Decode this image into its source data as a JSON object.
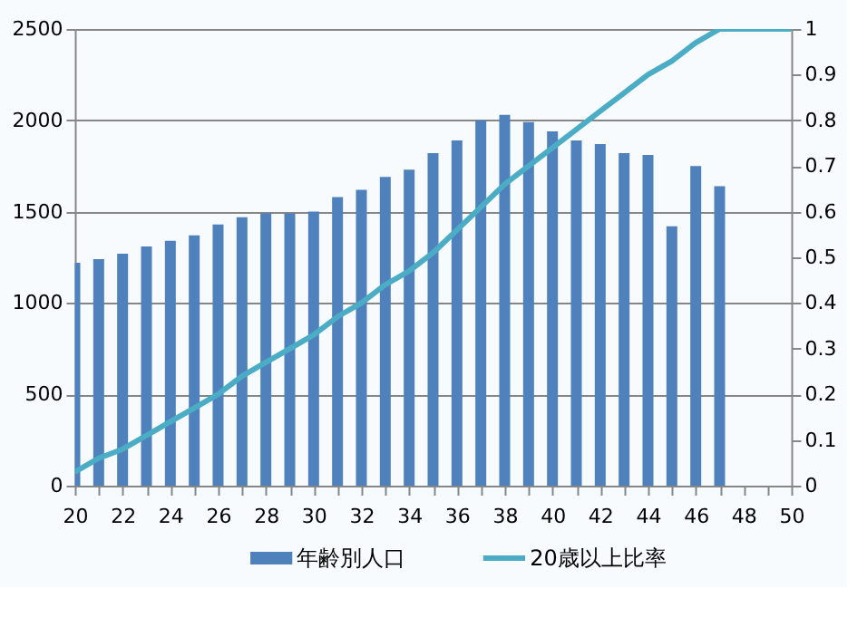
{
  "chart_data": {
    "type": "bar",
    "x": [
      20,
      21,
      22,
      23,
      24,
      25,
      26,
      27,
      28,
      29,
      30,
      31,
      32,
      33,
      34,
      35,
      36,
      37,
      38,
      39,
      40,
      41,
      42,
      43,
      44,
      45,
      46,
      47,
      48,
      49,
      50
    ],
    "series": [
      {
        "name": "年齢別人口",
        "color": "#4f81bd",
        "values": [
          1220,
          1240,
          1270,
          1310,
          1340,
          1370,
          1430,
          1470,
          1490,
          1490,
          1500,
          1580,
          1620,
          1690,
          1730,
          1820,
          1890,
          2000,
          2030,
          1990,
          1940,
          1890,
          1870,
          1820,
          1810,
          1420,
          1750,
          1640,
          null,
          null,
          null
        ]
      },
      {
        "name": "20歳以上比率",
        "type": "line",
        "axis": "y2",
        "color": "#4bacc6",
        "values": [
          0.03,
          0.06,
          0.08,
          0.11,
          0.14,
          0.17,
          0.2,
          0.24,
          0.27,
          0.3,
          0.33,
          0.37,
          0.4,
          0.44,
          0.47,
          0.51,
          0.56,
          0.61,
          0.66,
          0.7,
          0.74,
          0.78,
          0.82,
          0.86,
          0.9,
          0.93,
          0.97,
          1,
          1,
          1,
          1
        ]
      }
    ],
    "xlim": [
      20,
      50
    ],
    "xticks": [
      20,
      {
        "value": 21,
        "label": null
      },
      22,
      {
        "value": 23,
        "label": null
      },
      24,
      {
        "value": 25,
        "label": null
      },
      26,
      {
        "value": 27,
        "label": null
      },
      28,
      {
        "value": 29,
        "label": null
      },
      30,
      {
        "value": 31,
        "label": null
      },
      32,
      {
        "value": 33,
        "label": null
      },
      34,
      {
        "value": 35,
        "label": null
      },
      36,
      {
        "value": 37,
        "label": null
      },
      38,
      {
        "value": 39,
        "label": null
      },
      40,
      {
        "value": 41,
        "label": null
      },
      42,
      {
        "value": 43,
        "label": null
      },
      44,
      {
        "value": 45,
        "label": null
      },
      46,
      {
        "value": 47,
        "label": null
      },
      48,
      {
        "value": 49,
        "label": null
      },
      50
    ],
    "ylim": [
      0,
      2500
    ],
    "yticks": [
      0,
      500,
      1000,
      1500,
      2000,
      2500
    ],
    "y2lim": [
      0,
      1
    ],
    "y2ticks": [
      0,
      0.1,
      0.2,
      0.3,
      0.4,
      0.5,
      0.6,
      0.7,
      0.8,
      0.9,
      1
    ],
    "grid": "y",
    "legend": "bottom"
  }
}
